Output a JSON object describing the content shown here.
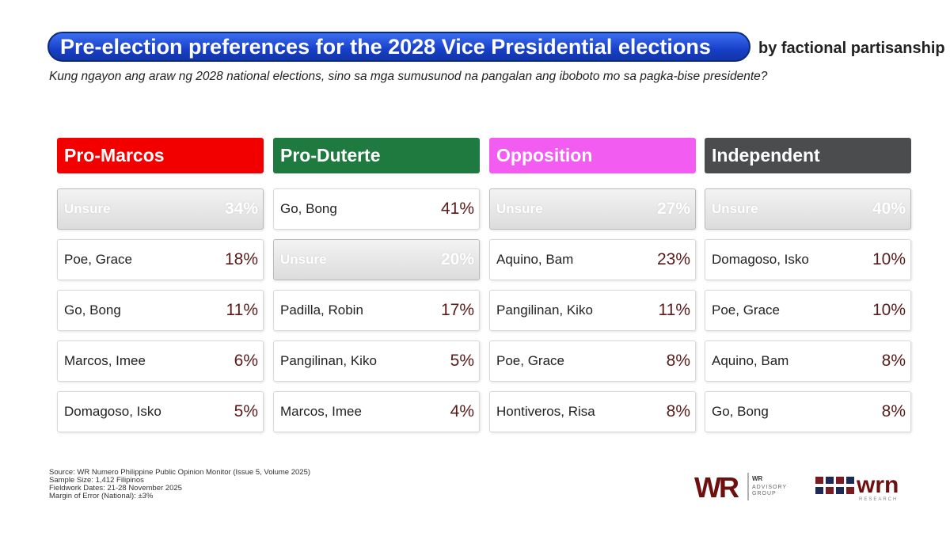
{
  "title": "Pre-election preferences for the 2028 Vice Presidential elections",
  "title_suffix": "by factional partisanship",
  "subtitle": "Kung ngayon ang araw ng 2028 national elections, sino sa mga sumusunod na pangalan ang iboboto mo sa pagka-bise presidente?",
  "chart_data": {
    "type": "table",
    "title": "Pre-election preferences for the 2028 Vice Presidential elections by factional partisanship",
    "groups": [
      {
        "name": "Pro-Marcos",
        "color": "#f20000",
        "rows": [
          {
            "name": "Unsure",
            "value": "34%"
          },
          {
            "name": "Poe, Grace",
            "value": "18%"
          },
          {
            "name": "Go, Bong",
            "value": "11%"
          },
          {
            "name": "Marcos, Imee",
            "value": "6%"
          },
          {
            "name": "Domagoso, Isko",
            "value": "5%"
          }
        ]
      },
      {
        "name": "Pro-Duterte",
        "color": "#1e7a3e",
        "rows": [
          {
            "name": "Go, Bong",
            "value": "41%"
          },
          {
            "name": "Unsure",
            "value": "20%"
          },
          {
            "name": "Padilla, Robin",
            "value": "17%"
          },
          {
            "name": "Pangilinan, Kiko",
            "value": "5%"
          },
          {
            "name": "Marcos, Imee",
            "value": "4%"
          }
        ]
      },
      {
        "name": "Opposition",
        "color": "#f25cf0",
        "rows": [
          {
            "name": "Unsure",
            "value": "27%"
          },
          {
            "name": "Aquino, Bam",
            "value": "23%"
          },
          {
            "name": "Pangilinan, Kiko",
            "value": "11%"
          },
          {
            "name": "Poe, Grace",
            "value": "8%"
          },
          {
            "name": "Hontiveros, Risa",
            "value": "8%"
          }
        ]
      },
      {
        "name": "Independent",
        "color": "#4a4c4e",
        "rows": [
          {
            "name": "Unsure",
            "value": "40%"
          },
          {
            "name": "Domagoso, Isko",
            "value": "10%"
          },
          {
            "name": "Poe, Grace",
            "value": "10%"
          },
          {
            "name": "Aquino, Bam",
            "value": "8%"
          },
          {
            "name": "Go, Bong",
            "value": "8%"
          }
        ]
      }
    ]
  },
  "source": [
    "Source: WR Numero Philippine Public Opinion Monitor (Issue 5, Volume 2025)",
    "Sample Size: 1,412 Filipinos",
    "Fieldwork Dates: 21-28 November 2025",
    "Margin of Error (National): ±3%"
  ],
  "logos": {
    "wr": "WR",
    "wr_sub1": "WR",
    "wr_sub2": "ADVISORY",
    "wr_sub3": "GROUP",
    "wrn": "wrn",
    "wrn_sub": "RESEARCH"
  }
}
